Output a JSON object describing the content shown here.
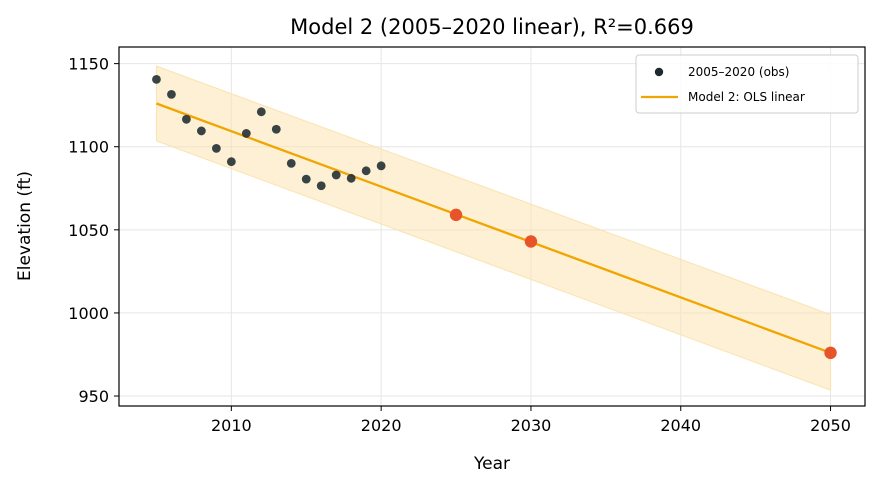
{
  "chart_data": {
    "type": "scatter",
    "title": "Model 2 (2005–2020 linear), R²=0.669",
    "xlabel": "Year",
    "ylabel": "Elevation (ft)",
    "xlim": [
      2002.5,
      2052.3
    ],
    "ylim": [
      944,
      1160
    ],
    "xticks": [
      2010,
      2020,
      2030,
      2040,
      2050
    ],
    "yticks": [
      950,
      1000,
      1050,
      1100,
      1150
    ],
    "grid": true,
    "legend_position": "top-right",
    "observations": {
      "name": "2005–2020 (obs)",
      "color": "#1f2a30",
      "x": [
        2005,
        2006,
        2007,
        2008,
        2009,
        2010,
        2011,
        2012,
        2013,
        2014,
        2015,
        2016,
        2017,
        2018,
        2019,
        2020
      ],
      "y": [
        1140.5,
        1131.5,
        1116.5,
        1109.5,
        1099,
        1091,
        1108,
        1121,
        1110.5,
        1090,
        1080.5,
        1076.5,
        1083,
        1081,
        1085.5,
        1088.5
      ]
    },
    "fit": {
      "name": "Model 2: OLS linear",
      "color": "#f0a500",
      "x": [
        2005,
        2050
      ],
      "y": [
        1126,
        976
      ]
    },
    "band": {
      "color": "#fbe3b0",
      "x": [
        2005,
        2050
      ],
      "upper": [
        1148.5,
        999
      ],
      "lower": [
        1103.5,
        953.5
      ]
    },
    "forecasts": {
      "color": "#e8542a",
      "x": [
        2025,
        2030,
        2050
      ],
      "y": [
        1059,
        1043,
        976
      ]
    }
  }
}
